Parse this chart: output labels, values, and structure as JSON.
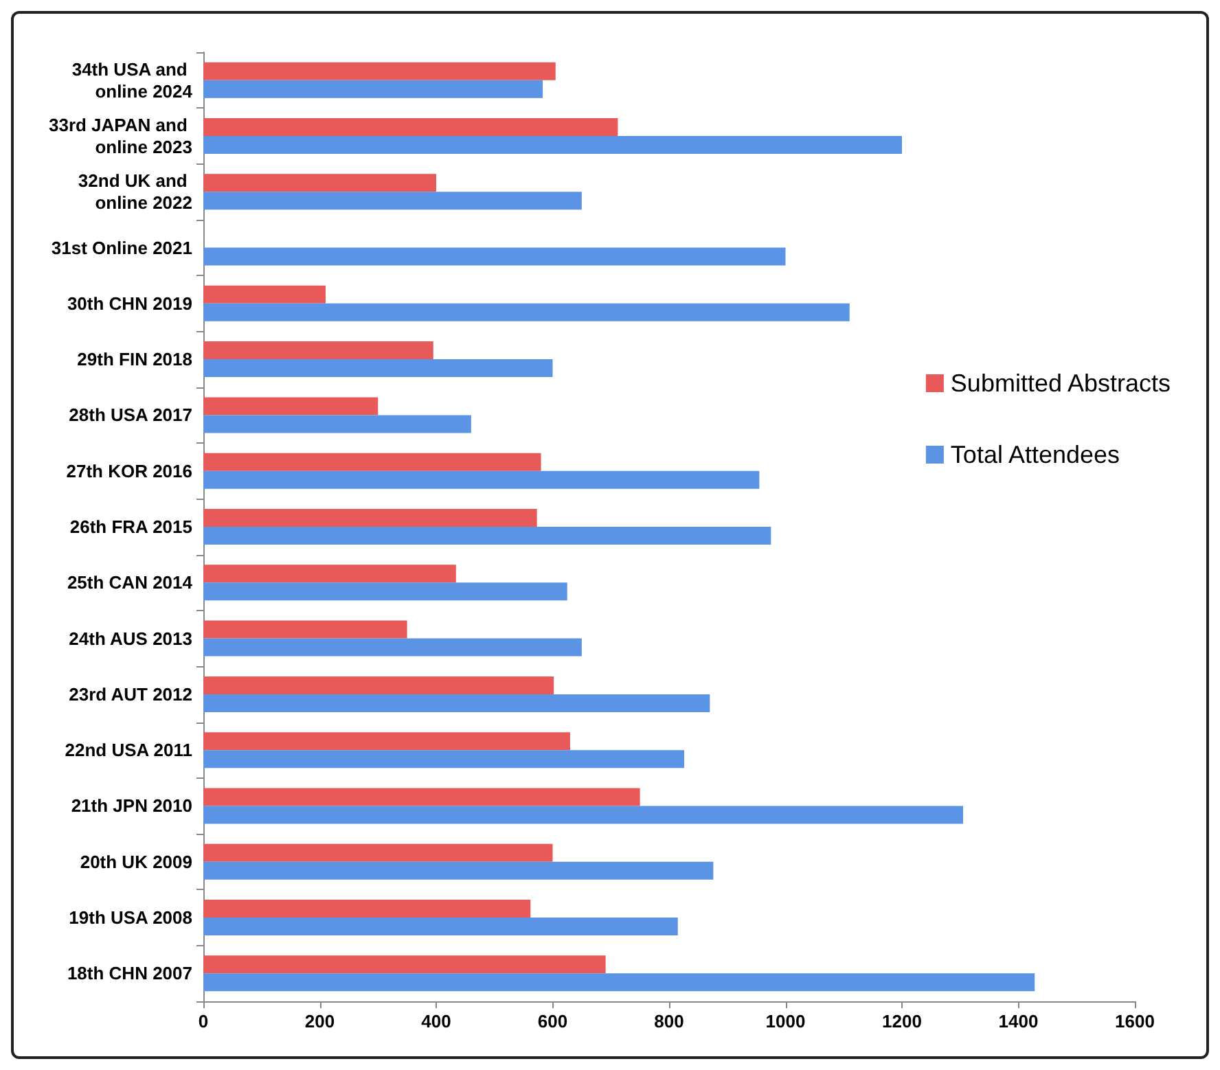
{
  "chart_data": {
    "type": "bar",
    "orientation": "horizontal",
    "categories": [
      "34th USA and online 2024",
      "33rd JAPAN and online 2023",
      "32nd UK and online 2022",
      "31st Online 2021",
      "30th CHN 2019",
      "29th FIN 2018",
      "28th USA 2017",
      "27th KOR 2016",
      "26th FRA 2015",
      "25th CAN 2014",
      "24th AUS 2013",
      "23rd AUT 2012",
      "22nd USA 2011",
      "21th JPN 2010",
      "20th UK 2009",
      "19th USA 2008",
      "18th CHN 2007"
    ],
    "series": [
      {
        "name": "Submitted Abstracts",
        "color": "#e8595a",
        "values": [
          605,
          712,
          400,
          null,
          210,
          395,
          300,
          580,
          573,
          434,
          350,
          602,
          630,
          750,
          600,
          562,
          691
        ]
      },
      {
        "name": "Total Attendees",
        "color": "#5b93e5",
        "values": [
          583,
          1200,
          650,
          1000,
          1110,
          600,
          460,
          955,
          975,
          625,
          650,
          870,
          826,
          1305,
          876,
          815,
          1428
        ]
      }
    ],
    "xlim": [
      0,
      1600
    ],
    "xticks": [
      0,
      200,
      400,
      600,
      800,
      1000,
      1200,
      1400,
      1600
    ],
    "grid": false,
    "legend": "right"
  }
}
